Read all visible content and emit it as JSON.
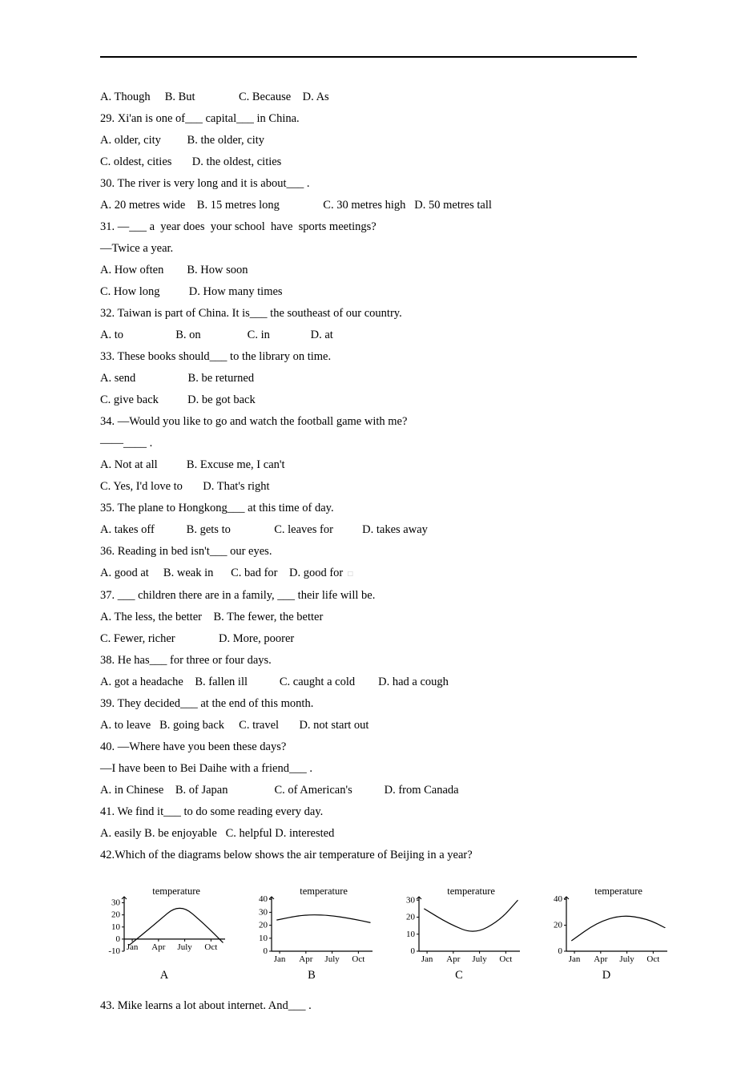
{
  "lines": {
    "l1": "A. Though     B. But               C. Because    D. As",
    "l2": "29. Xi'an is one of___ capital___ in China.",
    "l3": "A. older, city         B. the older, city",
    "l4": "C. oldest, cities       D. the oldest, cities",
    "l5": "30. The river is very long and it is about___ .",
    "l6": "A. 20 metres wide    B. 15 metres long               C. 30 metres high   D. 50 metres tall",
    "l7": "31. —___ a  year does  your school  have  sports meetings?",
    "l8": "—Twice a year.",
    "l9": "A. How often        B. How soon",
    "l10": "C. How long          D. How many times",
    "l11": "32. Taiwan is part of China. It is___ the southeast of our country.",
    "l12": "A. to                  B. on                C. in              D. at",
    "l13": "33. These books should___ to the library on time.",
    "l14": "A. send                  B. be returned",
    "l15": "C. give back          D. be got back",
    "l16": "34. —Would you like to go and watch the football game with me?",
    "l17": "——____ .",
    "l18": "A. Not at all          B. Excuse me, I can't",
    "l19": "C. Yes, I'd love to       D. That's right",
    "l20": "35. The plane to Hongkong___ at this time of day.",
    "l21": "A. takes off           B. gets to               C. leaves for          D. takes away",
    "l22": "36. Reading in bed isn't___ our eyes.",
    "l23": "A. good at     B. weak in      C. bad for    D. good for",
    "l24": "37. ___ children there are in a family, ___ their life will be.",
    "l25": "A. The less, the better    B. The fewer, the better",
    "l26": "C. Fewer, richer               D. More, poorer",
    "l27": "38. He has___ for three or four days.",
    "l28": "A. got a headache    B. fallen ill           C. caught a cold        D. had a cough",
    "l29": "39. They decided___ at the end of this month.",
    "l30": "A. to leave   B. going back     C. travel       D. not start out",
    "l31": "40. —Where have you been these days?",
    "l32": "—I have been to Bei Daihe with a friend___ .",
    "l33": "A. in Chinese    B. of Japan                C. of American's           D. from Canada",
    "l34": "41. We find it___ to do some reading every day.",
    "l35": "A. easily B. be enjoyable   C. helpful D. interested",
    "l36": "42.Which of the diagrams below shows the air temperature of Beijing in a year?",
    "l43": "43. Mike learns a lot about internet. And___ ."
  },
  "cursor_marker": "□",
  "charts": {
    "title_text": "temperature",
    "title_fontsize": 12.5,
    "axis_color": "#000000",
    "line_color": "#000000",
    "line_width": 1.2,
    "x_labels": [
      "Jan",
      "Apr",
      "July",
      "Oct"
    ],
    "x_label_fontsize": 11,
    "y_label_fontsize": 11,
    "background_color": "#ffffff",
    "A": {
      "label": "A",
      "y_ticks": [
        -10,
        0,
        10,
        20,
        30
      ],
      "ylim": [
        -10,
        35
      ],
      "series": [
        {
          "x": 0.05,
          "y": -5
        },
        {
          "x": 0.3,
          "y": 12
        },
        {
          "x": 0.55,
          "y": 30
        },
        {
          "x": 0.8,
          "y": 12
        },
        {
          "x": 0.98,
          "y": -3
        }
      ]
    },
    "B": {
      "label": "B",
      "y_ticks": [
        0,
        10,
        20,
        30,
        40
      ],
      "ylim": [
        0,
        42
      ],
      "series": [
        {
          "x": 0.05,
          "y": 24
        },
        {
          "x": 0.3,
          "y": 28
        },
        {
          "x": 0.55,
          "y": 28
        },
        {
          "x": 0.8,
          "y": 25
        },
        {
          "x": 0.98,
          "y": 22
        }
      ]
    },
    "C": {
      "label": "C",
      "y_ticks": [
        0,
        10,
        20,
        30
      ],
      "ylim": [
        0,
        32
      ],
      "series": [
        {
          "x": 0.05,
          "y": 25
        },
        {
          "x": 0.3,
          "y": 16
        },
        {
          "x": 0.55,
          "y": 10
        },
        {
          "x": 0.8,
          "y": 18
        },
        {
          "x": 0.98,
          "y": 30
        }
      ]
    },
    "D": {
      "label": "D",
      "y_ticks": [
        0,
        20,
        40
      ],
      "ylim": [
        0,
        42
      ],
      "series": [
        {
          "x": 0.05,
          "y": 8
        },
        {
          "x": 0.3,
          "y": 22
        },
        {
          "x": 0.55,
          "y": 28
        },
        {
          "x": 0.8,
          "y": 25
        },
        {
          "x": 0.98,
          "y": 18
        }
      ]
    }
  }
}
